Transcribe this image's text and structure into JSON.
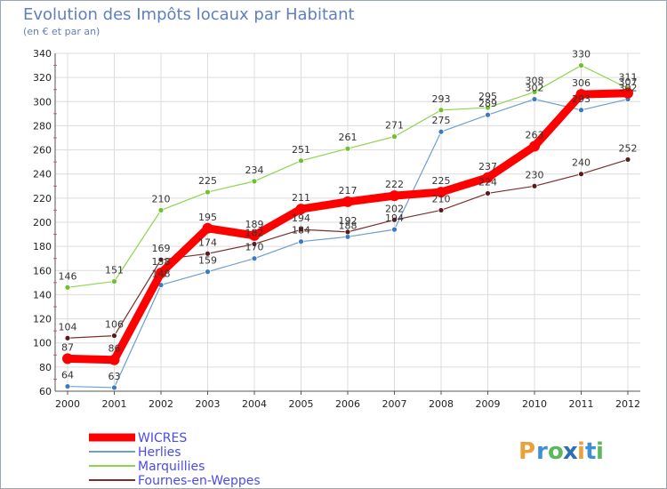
{
  "chart_data": {
    "type": "line",
    "title": "Evolution des Impôts locaux par Habitant",
    "subtitle": "(en € et par an)",
    "x": [
      "2000",
      "2001",
      "2002",
      "2003",
      "2004",
      "2005",
      "2006",
      "2007",
      "2008",
      "2009",
      "2010",
      "2011",
      "2012"
    ],
    "ylim": [
      60,
      340
    ],
    "yticks": [
      60,
      80,
      100,
      120,
      140,
      160,
      180,
      200,
      220,
      240,
      260,
      280,
      300,
      320,
      340
    ],
    "grid": true,
    "series": [
      {
        "name": "Marquillies",
        "color": "#8fd44f",
        "point_color": "#6fbf2f",
        "width": 1.2,
        "values": [
          146,
          151,
          210,
          225,
          234,
          251,
          261,
          271,
          293,
          295,
          308,
          330,
          311
        ]
      },
      {
        "name": "Herlies",
        "color": "#6a9fd0",
        "point_color": "#3a7ac0",
        "width": 1.2,
        "values": [
          64,
          63,
          148,
          159,
          170,
          184,
          188,
          194,
          275,
          289,
          302,
          293,
          302
        ]
      },
      {
        "name": "Fournes-en-Weppes",
        "color": "#7a2f2f",
        "point_color": "#5a1a1a",
        "width": 1.2,
        "values": [
          104,
          106,
          169,
          174,
          182,
          194,
          192,
          202,
          210,
          224,
          230,
          240,
          252
        ]
      },
      {
        "name": "WICRES",
        "color": "#ff0000",
        "point_color": "#ff0000",
        "width": 9,
        "values": [
          87,
          86,
          158,
          195,
          189,
          211,
          217,
          222,
          225,
          237,
          263,
          306,
          307
        ]
      }
    ],
    "data_labels": [
      {
        "series": 0,
        "labels": [
          "146",
          "151",
          "210",
          "225",
          "234",
          "251",
          "261",
          "271",
          "293",
          "295",
          "308",
          "330",
          "311"
        ]
      },
      {
        "series": 1,
        "labels": [
          "64",
          "63",
          "148",
          "159",
          "170",
          "184",
          "188",
          "194",
          "275",
          "289",
          "302",
          "293",
          "302"
        ]
      },
      {
        "series": 2,
        "labels": [
          "104",
          "106",
          "169",
          "174",
          "182",
          "194",
          "192",
          "202",
          "210",
          "224",
          "230",
          "240",
          "252"
        ]
      },
      {
        "series": 3,
        "labels": [
          "87",
          "86",
          "158",
          "195",
          "189",
          "211",
          "217",
          "222",
          "225",
          "237",
          "263",
          "306",
          "307"
        ]
      }
    ],
    "legend": {
      "placement": "bottom-left",
      "items": [
        {
          "name": "WICRES",
          "color": "#ff0000",
          "text_color": "#4a4af0"
        },
        {
          "name": "Herlies",
          "color": "#6a9fd0",
          "text_color": "#4a4af0"
        },
        {
          "name": "Marquillies",
          "color": "#8fd44f",
          "text_color": "#4a4af0"
        },
        {
          "name": "Fournes-en-Weppes",
          "color": "#7a2f2f",
          "text_color": "#4a4af0"
        }
      ]
    }
  },
  "logo": {
    "letters": [
      "P",
      "r",
      "o",
      "x",
      "i",
      "t",
      "i"
    ],
    "colors": [
      "#e9a23b",
      "#3d8fd6",
      "#5cb85c",
      "#2f6db5",
      "#e9a23b",
      "#3d8fd6",
      "#5cb85c"
    ]
  }
}
